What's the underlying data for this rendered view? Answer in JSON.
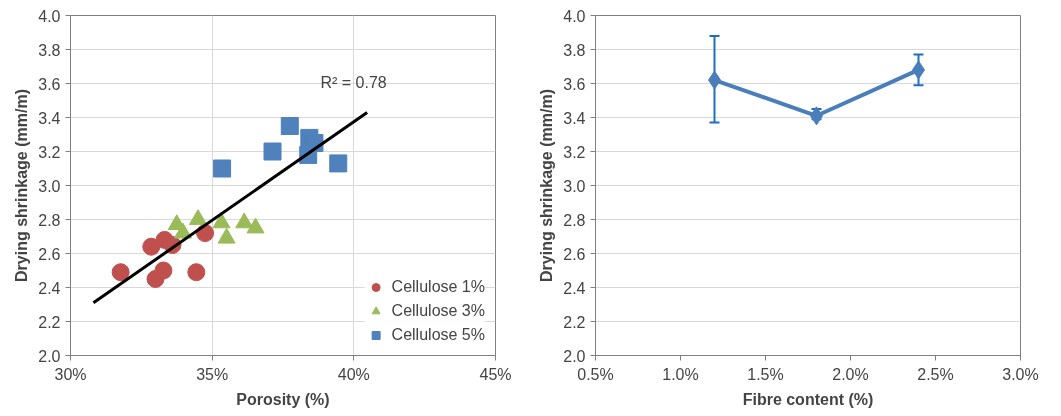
{
  "chart_data": [
    {
      "type": "scatter",
      "xlabel": "Porosity (%)",
      "ylabel": "Drying shrinkage (mm/m)",
      "xlim": [
        30,
        45
      ],
      "xticks": [
        {
          "value": 30,
          "label": "30%"
        },
        {
          "value": 35,
          "label": "35%"
        },
        {
          "value": 40,
          "label": "40%"
        },
        {
          "value": 45,
          "label": "45%"
        }
      ],
      "ylim": [
        2.0,
        4.0
      ],
      "yticks": [
        {
          "value": 2.0,
          "label": "2.0"
        },
        {
          "value": 2.2,
          "label": "2.2"
        },
        {
          "value": 2.4,
          "label": "2.4"
        },
        {
          "value": 2.6,
          "label": "2.6"
        },
        {
          "value": 2.8,
          "label": "2.8"
        },
        {
          "value": 3.0,
          "label": "3.0"
        },
        {
          "value": 3.2,
          "label": "3.2"
        },
        {
          "value": 3.4,
          "label": "3.4"
        },
        {
          "value": 3.6,
          "label": "3.6"
        },
        {
          "value": 3.8,
          "label": "3.8"
        },
        {
          "value": 4.0,
          "label": "4.0"
        }
      ],
      "grid": true,
      "legend": "bottom right",
      "annotations": [
        "R² = 0.78"
      ],
      "series": [
        {
          "name": "Cellulose 1%",
          "color": "#c0504d",
          "marker": "circle",
          "x": [
            31.77,
            32.85,
            33.32,
            33.6,
            33.0,
            33.28,
            34.44,
            34.75
          ],
          "values": [
            2.49,
            2.64,
            2.68,
            2.65,
            2.45,
            2.5,
            2.49,
            2.72
          ]
        },
        {
          "name": "Cellulose 3%",
          "color": "#9bbb59",
          "marker": "triangle",
          "x": [
            33.75,
            33.97,
            34.5,
            35.33,
            35.51,
            36.13,
            36.53
          ],
          "values": [
            2.77,
            2.72,
            2.8,
            2.78,
            2.69,
            2.78,
            2.75
          ]
        },
        {
          "name": "Cellulose 5%",
          "color": "#4f81bd",
          "marker": "square",
          "x": [
            35.35,
            37.13,
            37.74,
            38.43,
            38.61,
            38.39,
            39.45
          ],
          "values": [
            3.1,
            3.2,
            3.35,
            3.28,
            3.25,
            3.18,
            3.13
          ]
        },
        {
          "type": "line",
          "color": "#000000",
          "x": [
            30.81,
            40.47
          ],
          "values": [
            2.31,
            3.43
          ]
        }
      ]
    },
    {
      "type": "line",
      "xlabel": "Fibre content (%)",
      "ylabel": "Drying shrinkage (mm/m)",
      "xlim": [
        0.5,
        3.0
      ],
      "xticks": [
        {
          "value": 0.5,
          "label": "0.5%"
        },
        {
          "value": 1.0,
          "label": "1.0%"
        },
        {
          "value": 1.5,
          "label": "1.5%"
        },
        {
          "value": 2.0,
          "label": "2.0%"
        },
        {
          "value": 2.5,
          "label": "2.5%"
        },
        {
          "value": 3.0,
          "label": "3.0%"
        }
      ],
      "ylim": [
        2.0,
        4.0
      ],
      "yticks": [
        {
          "value": 2.0,
          "label": "2.0"
        },
        {
          "value": 2.2,
          "label": "2.2"
        },
        {
          "value": 2.4,
          "label": "2.4"
        },
        {
          "value": 2.6,
          "label": "2.6"
        },
        {
          "value": 2.8,
          "label": "2.8"
        },
        {
          "value": 3.0,
          "label": "3.0"
        },
        {
          "value": 3.2,
          "label": "3.2"
        },
        {
          "value": 3.4,
          "label": "3.4"
        },
        {
          "value": 3.6,
          "label": "3.6"
        },
        {
          "value": 3.8,
          "label": "3.8"
        },
        {
          "value": 4.0,
          "label": "4.0"
        }
      ],
      "grid": "y",
      "marker": "diamond",
      "series": [
        {
          "color": "#4a7ebb",
          "x": [
            1.2,
            1.8,
            2.4
          ],
          "values": [
            3.62,
            3.41,
            3.68
          ],
          "errors": [
            [
              3.37,
              3.88
            ],
            [
              3.39,
              3.45
            ],
            [
              3.59,
              3.77
            ]
          ]
        }
      ]
    }
  ]
}
